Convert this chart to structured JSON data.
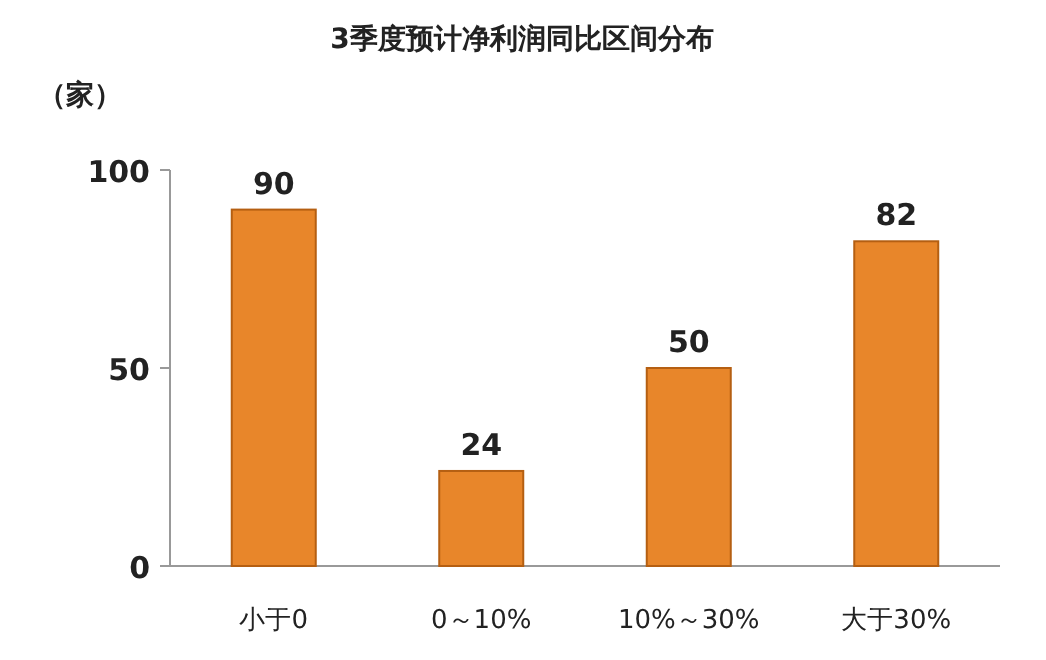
{
  "chart_data": {
    "type": "bar",
    "title": "3季度预计净利润同比区间分布",
    "ylabel": "（家）",
    "categories": [
      "小于0",
      "0～10%",
      "10%～30%",
      "大于30%"
    ],
    "values": [
      90,
      24,
      50,
      82
    ],
    "color": "#e8862a",
    "ylim": [
      0,
      100
    ],
    "yticks": [
      0,
      50,
      100
    ],
    "data_labels": true
  }
}
